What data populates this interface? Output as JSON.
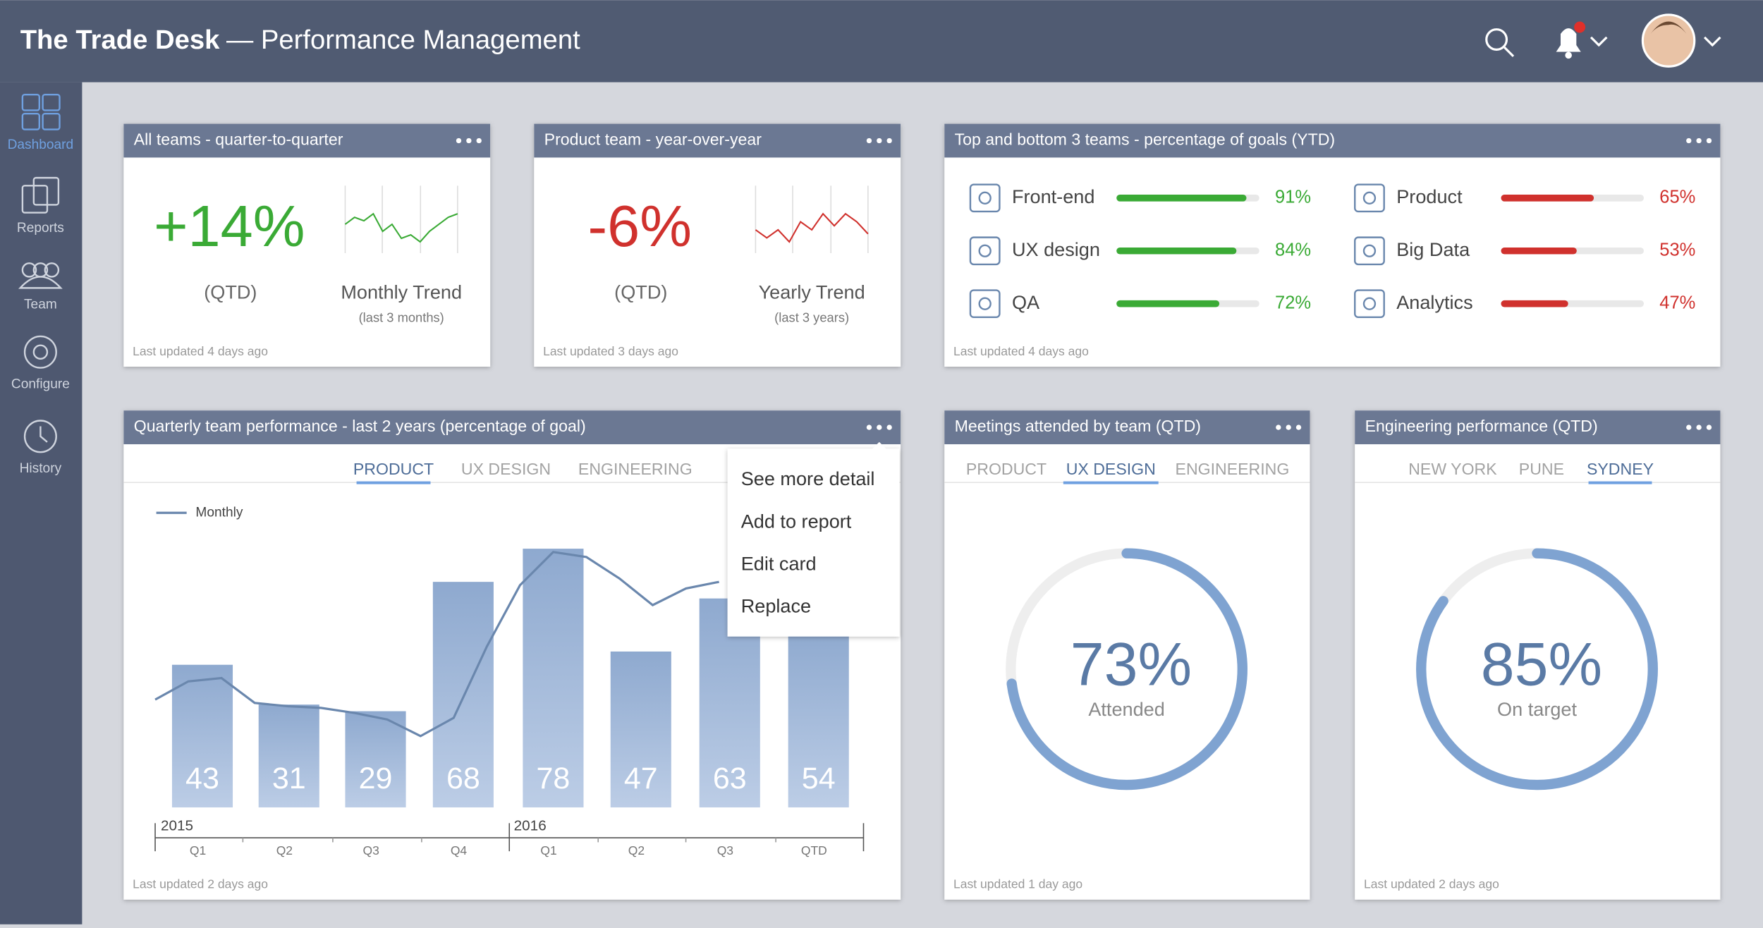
{
  "header": {
    "brand": "The Trade Desk",
    "title": "— Performance Management"
  },
  "sidebar": {
    "items": [
      "Dashboard",
      "Reports",
      "Team",
      "Configure",
      "History"
    ]
  },
  "cards": [
    {
      "title": "All teams - quarter-to-quarter",
      "kpi": "+14%",
      "kpi_label": "(QTD)",
      "trend_label": "Monthly Trend",
      "trend_note": "(last 3 months)",
      "trend": [
        5,
        6,
        5.5,
        6.5,
        4,
        5,
        3,
        3.5,
        2.5,
        4,
        5,
        6,
        6.5
      ],
      "color": "#3aaa35",
      "footer": "Last updated 4 days ago"
    },
    {
      "title": "Product team - year-over-year",
      "kpi": "-6%",
      "kpi_label": "(QTD)",
      "trend_label": "Yearly Trend",
      "trend_note": "(last 3 years)",
      "trend": [
        5,
        4,
        5,
        3.5,
        6,
        5,
        7,
        5.5,
        7,
        6,
        4.5
      ],
      "color": "#d0312d",
      "footer": "Last updated 3 days ago"
    },
    {
      "title": "Top and bottom 3 teams - percentage of goals (YTD)",
      "top": {
        "color": "#3aaa35",
        "rows": [
          {
            "name": "Front-end",
            "value": 91,
            "value_label": "91%"
          },
          {
            "name": "UX design",
            "value": 84,
            "value_label": "84%"
          },
          {
            "name": "QA",
            "value": 72,
            "value_label": "72%"
          }
        ]
      },
      "bottom": {
        "color": "#d0312d",
        "rows": [
          {
            "name": "Product",
            "value": 65,
            "value_label": "65%"
          },
          {
            "name": "Big Data",
            "value": 53,
            "value_label": "53%"
          },
          {
            "name": "Analytics",
            "value": 47,
            "value_label": "47%"
          }
        ]
      },
      "footer": "Last updated 4 days ago"
    },
    {
      "title": "Quarterly team performance - last 2 years (percentage of goal)",
      "tabs": [
        "PRODUCT",
        "UX DESIGN",
        "ENGINEERING"
      ],
      "active_tab": 0,
      "chart_data": {
        "type": "bar",
        "categories": [
          "Q1",
          "Q2",
          "Q3",
          "Q4",
          "Q1",
          "Q2",
          "Q3",
          "QTD"
        ],
        "years": [
          "2015",
          "2016"
        ],
        "values": [
          43,
          31,
          29,
          68,
          78,
          47,
          63,
          54
        ],
        "color": "#93aed3",
        "line": {
          "name": "Monthly",
          "color": "#6a87ad",
          "values": [
            32.5,
            38,
            39,
            31.5,
            30.5,
            30,
            28.5,
            26.5,
            21.5,
            27,
            48.5,
            67,
            77,
            75.5,
            69,
            61,
            66,
            68
          ]
        }
      },
      "menu": [
        "See more detail",
        "Add to report",
        "Edit card",
        "Replace"
      ],
      "footer": "Last updated 2 days ago"
    },
    {
      "title": "Meetings attended by team (QTD)",
      "tabs": [
        "PRODUCT",
        "UX DESIGN",
        "ENGINEERING"
      ],
      "active_tab": 1,
      "value": 73,
      "value_label": "73%",
      "caption": "Attended",
      "footer": "Last updated 1 day ago"
    },
    {
      "title": "Engineering performance (QTD)",
      "tabs": [
        "NEW YORK",
        "PUNE",
        "SYDNEY"
      ],
      "active_tab": 2,
      "value": 85,
      "value_label": "85%",
      "caption": "On target",
      "footer": "Last updated 2 days ago"
    }
  ]
}
